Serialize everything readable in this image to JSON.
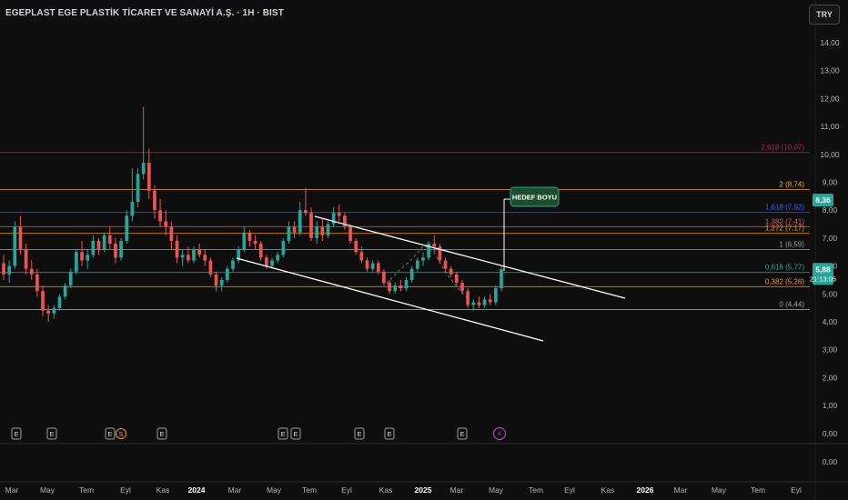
{
  "header": {
    "title": "EGEPLAST EGE PLASTİK TİCARET VE SANAYİ A.Ş. · 1H · BIST",
    "currency_button": "TRY"
  },
  "chart_data": {
    "type": "candlestick",
    "ylim": [
      -0.35,
      14.4
    ],
    "y_ticks": [
      "14,00",
      "13,00",
      "12,00",
      "11,00",
      "10,00",
      "9,00",
      "8,00",
      "7,00",
      "6,00",
      "5,00",
      "4,00",
      "3,00",
      "2,00",
      "1,00",
      "0,00",
      "0,00"
    ],
    "x_ticks": [
      "Mar",
      "May",
      "Tem",
      "Eyl",
      "Kas",
      "2024",
      "Mar",
      "May",
      "Tem",
      "Eyl",
      "Kas",
      "2025",
      "Mar",
      "May",
      "Tem",
      "Eyl",
      "Kas",
      "2026",
      "Mar",
      "May",
      "Tem",
      "Eyl"
    ],
    "fib_levels": [
      {
        "label": "2,618 (10,07)",
        "value": 10.07,
        "color": "#c2185b"
      },
      {
        "label": "2 (8,74)",
        "value": 8.74,
        "color": "#f7a531"
      },
      {
        "label": "1,618 (7,92)",
        "value": 7.92,
        "color": "#2962ff"
      },
      {
        "label": "1,382 (7,41)",
        "value": 7.41,
        "color": "#ef5350"
      },
      {
        "label": "1,272 (7,17)",
        "value": 7.17,
        "color": "#ff9800"
      },
      {
        "label": "1 (6,59)",
        "value": 6.59,
        "color": "#9e9e9e"
      },
      {
        "label": "0,618 (5,77)",
        "value": 5.77,
        "color": "#26a69a"
      },
      {
        "label": "0,382 (5,26)",
        "value": 5.26,
        "color": "#ff9800"
      },
      {
        "label": "0 (4,44)",
        "value": 4.44,
        "color": "#9e9e9e"
      }
    ],
    "price_tags": [
      {
        "value": 8.36,
        "label": "8,36",
        "color": "#26a69a"
      },
      {
        "value": 5.88,
        "label": "5,88",
        "sublabel": "21:13:05",
        "color": "#26a69a"
      }
    ],
    "annotation": {
      "text": "HEDEF BOYU"
    },
    "event_markers": [
      "E",
      "E",
      "E",
      "S",
      "E",
      "E",
      "E",
      "E",
      "E",
      "E",
      "⚡"
    ],
    "candles": [
      {
        "t": "2023-03-01",
        "o": 6.1,
        "h": 6.4,
        "l": 5.5,
        "c": 5.7
      },
      {
        "t": "2023-03-08",
        "o": 5.7,
        "h": 6.2,
        "l": 5.4,
        "c": 6.0
      },
      {
        "t": "2023-03-15",
        "o": 6.0,
        "h": 7.6,
        "l": 5.9,
        "c": 7.4
      },
      {
        "t": "2023-03-22",
        "o": 7.4,
        "h": 7.8,
        "l": 6.4,
        "c": 6.6
      },
      {
        "t": "2023-03-29",
        "o": 6.6,
        "h": 6.8,
        "l": 5.7,
        "c": 5.9
      },
      {
        "t": "2023-04-05",
        "o": 5.9,
        "h": 6.2,
        "l": 5.5,
        "c": 5.7
      },
      {
        "t": "2023-04-12",
        "o": 5.7,
        "h": 5.9,
        "l": 4.9,
        "c": 5.1
      },
      {
        "t": "2023-04-19",
        "o": 5.1,
        "h": 5.3,
        "l": 4.2,
        "c": 4.4
      },
      {
        "t": "2023-04-26",
        "o": 4.4,
        "h": 4.6,
        "l": 4.0,
        "c": 4.3
      },
      {
        "t": "2023-05-03",
        "o": 4.3,
        "h": 4.6,
        "l": 4.1,
        "c": 4.5
      },
      {
        "t": "2023-05-10",
        "o": 4.5,
        "h": 5.0,
        "l": 4.4,
        "c": 4.9
      },
      {
        "t": "2023-05-17",
        "o": 4.9,
        "h": 5.4,
        "l": 4.8,
        "c": 5.3
      },
      {
        "t": "2023-05-24",
        "o": 5.3,
        "h": 5.9,
        "l": 5.2,
        "c": 5.8
      },
      {
        "t": "2023-05-31",
        "o": 5.8,
        "h": 6.6,
        "l": 5.7,
        "c": 6.5
      },
      {
        "t": "2023-06-07",
        "o": 6.5,
        "h": 6.9,
        "l": 6.0,
        "c": 6.2
      },
      {
        "t": "2023-06-14",
        "o": 6.2,
        "h": 6.6,
        "l": 5.9,
        "c": 6.4
      },
      {
        "t": "2023-06-21",
        "o": 6.4,
        "h": 7.1,
        "l": 6.3,
        "c": 6.9
      },
      {
        "t": "2023-06-28",
        "o": 6.9,
        "h": 7.0,
        "l": 6.4,
        "c": 6.6
      },
      {
        "t": "2023-07-05",
        "o": 6.6,
        "h": 7.2,
        "l": 6.5,
        "c": 7.1
      },
      {
        "t": "2023-07-12",
        "o": 7.1,
        "h": 7.4,
        "l": 6.6,
        "c": 6.8
      },
      {
        "t": "2023-07-19",
        "o": 6.8,
        "h": 7.0,
        "l": 6.1,
        "c": 6.3
      },
      {
        "t": "2023-07-26",
        "o": 6.3,
        "h": 7.0,
        "l": 6.2,
        "c": 6.9
      },
      {
        "t": "2023-08-02",
        "o": 6.9,
        "h": 8.0,
        "l": 6.8,
        "c": 7.8
      },
      {
        "t": "2023-08-09",
        "o": 7.8,
        "h": 9.5,
        "l": 7.6,
        "c": 8.3
      },
      {
        "t": "2023-08-16",
        "o": 8.3,
        "h": 9.5,
        "l": 8.1,
        "c": 9.3
      },
      {
        "t": "2023-08-23",
        "o": 9.3,
        "h": 11.7,
        "l": 9.1,
        "c": 9.7
      },
      {
        "t": "2023-08-30",
        "o": 9.7,
        "h": 10.2,
        "l": 8.4,
        "c": 8.7
      },
      {
        "t": "2023-09-06",
        "o": 8.7,
        "h": 8.9,
        "l": 7.7,
        "c": 8.0
      },
      {
        "t": "2023-09-13",
        "o": 8.0,
        "h": 8.4,
        "l": 7.4,
        "c": 7.6
      },
      {
        "t": "2023-09-20",
        "o": 7.6,
        "h": 8.0,
        "l": 7.1,
        "c": 7.4
      },
      {
        "t": "2023-09-27",
        "o": 7.4,
        "h": 7.6,
        "l": 6.6,
        "c": 6.9
      },
      {
        "t": "2023-10-04",
        "o": 6.9,
        "h": 7.1,
        "l": 6.1,
        "c": 6.3
      },
      {
        "t": "2023-10-11",
        "o": 6.3,
        "h": 6.6,
        "l": 6.0,
        "c": 6.4
      },
      {
        "t": "2023-10-18",
        "o": 6.4,
        "h": 6.7,
        "l": 6.1,
        "c": 6.2
      },
      {
        "t": "2023-10-25",
        "o": 6.2,
        "h": 6.7,
        "l": 6.1,
        "c": 6.6
      },
      {
        "t": "2023-11-01",
        "o": 6.6,
        "h": 6.8,
        "l": 6.3,
        "c": 6.4
      },
      {
        "t": "2023-11-08",
        "o": 6.4,
        "h": 6.6,
        "l": 6.0,
        "c": 6.2
      },
      {
        "t": "2023-11-15",
        "o": 6.2,
        "h": 6.3,
        "l": 5.6,
        "c": 5.7
      },
      {
        "t": "2023-11-22",
        "o": 5.7,
        "h": 5.8,
        "l": 5.1,
        "c": 5.3
      },
      {
        "t": "2023-11-29",
        "o": 5.3,
        "h": 5.6,
        "l": 5.1,
        "c": 5.5
      },
      {
        "t": "2023-12-06",
        "o": 5.5,
        "h": 6.0,
        "l": 5.4,
        "c": 5.9
      },
      {
        "t": "2023-12-13",
        "o": 5.9,
        "h": 6.3,
        "l": 5.8,
        "c": 6.2
      },
      {
        "t": "2023-12-20",
        "o": 6.2,
        "h": 6.7,
        "l": 6.1,
        "c": 6.6
      },
      {
        "t": "2023-12-27",
        "o": 6.6,
        "h": 7.4,
        "l": 6.5,
        "c": 7.2
      },
      {
        "t": "2024-01-03",
        "o": 7.2,
        "h": 7.3,
        "l": 6.7,
        "c": 6.9
      },
      {
        "t": "2024-01-10",
        "o": 6.9,
        "h": 7.1,
        "l": 6.6,
        "c": 6.8
      },
      {
        "t": "2024-01-17",
        "o": 6.8,
        "h": 6.9,
        "l": 6.2,
        "c": 6.3
      },
      {
        "t": "2024-01-24",
        "o": 6.3,
        "h": 6.4,
        "l": 5.9,
        "c": 6.0
      },
      {
        "t": "2024-01-31",
        "o": 6.0,
        "h": 6.3,
        "l": 5.9,
        "c": 6.2
      },
      {
        "t": "2024-02-07",
        "o": 6.2,
        "h": 6.5,
        "l": 6.1,
        "c": 6.4
      },
      {
        "t": "2024-02-14",
        "o": 6.4,
        "h": 7.0,
        "l": 6.3,
        "c": 6.9
      },
      {
        "t": "2024-02-21",
        "o": 6.9,
        "h": 7.6,
        "l": 6.8,
        "c": 7.4
      },
      {
        "t": "2024-02-28",
        "o": 7.4,
        "h": 7.6,
        "l": 7.0,
        "c": 7.2
      },
      {
        "t": "2024-03-06",
        "o": 7.2,
        "h": 8.3,
        "l": 7.1,
        "c": 8.0
      },
      {
        "t": "2024-03-13",
        "o": 8.0,
        "h": 8.8,
        "l": 7.8,
        "c": 7.9
      },
      {
        "t": "2024-03-20",
        "o": 7.9,
        "h": 8.1,
        "l": 6.9,
        "c": 7.0
      },
      {
        "t": "2024-03-27",
        "o": 7.0,
        "h": 7.6,
        "l": 6.8,
        "c": 7.4
      },
      {
        "t": "2024-04-03",
        "o": 7.4,
        "h": 7.7,
        "l": 6.9,
        "c": 7.1
      },
      {
        "t": "2024-04-10",
        "o": 7.1,
        "h": 7.6,
        "l": 7.0,
        "c": 7.5
      },
      {
        "t": "2024-04-17",
        "o": 7.5,
        "h": 8.1,
        "l": 7.4,
        "c": 7.9
      },
      {
        "t": "2024-04-24",
        "o": 7.9,
        "h": 8.2,
        "l": 7.6,
        "c": 7.8
      },
      {
        "t": "2024-05-01",
        "o": 7.8,
        "h": 7.9,
        "l": 7.3,
        "c": 7.4
      },
      {
        "t": "2024-05-08",
        "o": 7.4,
        "h": 7.5,
        "l": 6.8,
        "c": 6.9
      },
      {
        "t": "2024-05-15",
        "o": 6.9,
        "h": 7.0,
        "l": 6.4,
        "c": 6.5
      },
      {
        "t": "2024-05-22",
        "o": 6.5,
        "h": 6.7,
        "l": 6.1,
        "c": 6.2
      },
      {
        "t": "2024-05-29",
        "o": 6.2,
        "h": 6.3,
        "l": 5.8,
        "c": 5.9
      },
      {
        "t": "2024-06-05",
        "o": 5.9,
        "h": 6.2,
        "l": 5.8,
        "c": 6.1
      },
      {
        "t": "2024-06-12",
        "o": 6.1,
        "h": 6.2,
        "l": 5.7,
        "c": 5.8
      },
      {
        "t": "2024-06-19",
        "o": 5.8,
        "h": 5.9,
        "l": 5.3,
        "c": 5.4
      },
      {
        "t": "2024-06-26",
        "o": 5.4,
        "h": 5.5,
        "l": 5.0,
        "c": 5.1
      },
      {
        "t": "2024-07-03",
        "o": 5.1,
        "h": 5.4,
        "l": 5.0,
        "c": 5.3
      },
      {
        "t": "2024-07-10",
        "o": 5.3,
        "h": 5.5,
        "l": 5.1,
        "c": 5.2
      },
      {
        "t": "2024-07-17",
        "o": 5.2,
        "h": 5.6,
        "l": 5.1,
        "c": 5.5
      },
      {
        "t": "2024-07-24",
        "o": 5.5,
        "h": 6.0,
        "l": 5.4,
        "c": 5.9
      },
      {
        "t": "2024-07-31",
        "o": 5.9,
        "h": 6.3,
        "l": 5.8,
        "c": 6.2
      },
      {
        "t": "2024-08-07",
        "o": 6.2,
        "h": 6.5,
        "l": 6.0,
        "c": 6.3
      },
      {
        "t": "2024-08-14",
        "o": 6.3,
        "h": 6.9,
        "l": 6.2,
        "c": 6.8
      },
      {
        "t": "2024-08-21",
        "o": 6.8,
        "h": 7.1,
        "l": 6.5,
        "c": 6.7
      },
      {
        "t": "2024-08-28",
        "o": 6.7,
        "h": 6.8,
        "l": 6.1,
        "c": 6.2
      },
      {
        "t": "2024-09-04",
        "o": 6.2,
        "h": 6.3,
        "l": 5.8,
        "c": 5.9
      },
      {
        "t": "2024-09-11",
        "o": 5.9,
        "h": 6.0,
        "l": 5.6,
        "c": 5.7
      },
      {
        "t": "2024-09-18",
        "o": 5.7,
        "h": 5.8,
        "l": 5.3,
        "c": 5.4
      },
      {
        "t": "2024-09-25",
        "o": 5.4,
        "h": 5.5,
        "l": 5.0,
        "c": 5.1
      },
      {
        "t": "2024-10-02",
        "o": 5.1,
        "h": 5.2,
        "l": 4.5,
        "c": 4.6
      },
      {
        "t": "2024-10-09",
        "o": 4.6,
        "h": 4.8,
        "l": 4.4,
        "c": 4.7
      },
      {
        "t": "2024-10-16",
        "o": 4.7,
        "h": 4.9,
        "l": 4.5,
        "c": 4.6
      },
      {
        "t": "2024-10-23",
        "o": 4.6,
        "h": 4.9,
        "l": 4.5,
        "c": 4.8
      },
      {
        "t": "2024-10-30",
        "o": 4.8,
        "h": 5.0,
        "l": 4.6,
        "c": 4.7
      },
      {
        "t": "2024-11-06",
        "o": 4.7,
        "h": 5.3,
        "l": 4.6,
        "c": 5.2
      },
      {
        "t": "2024-11-13",
        "o": 5.2,
        "h": 6.0,
        "l": 5.1,
        "c": 5.88
      }
    ]
  }
}
